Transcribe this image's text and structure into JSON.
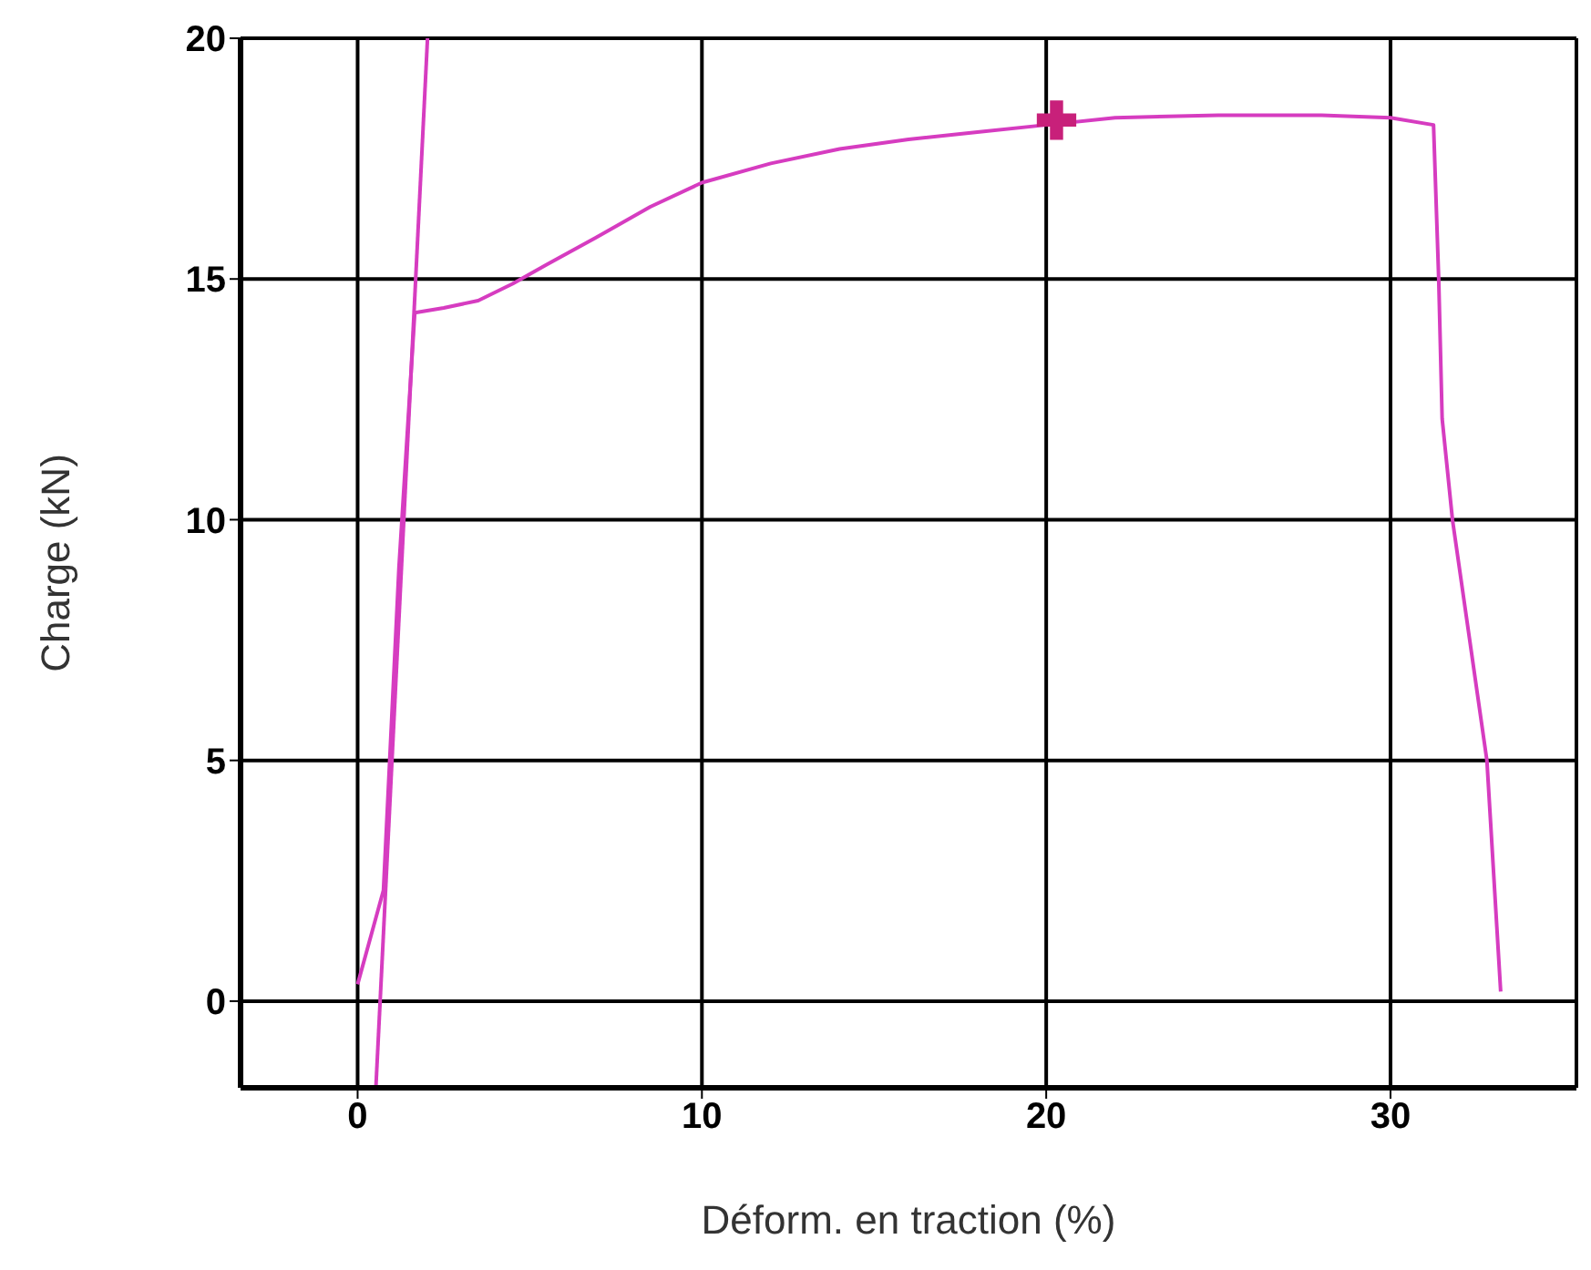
{
  "chart_data": {
    "type": "line",
    "xlabel": "Déform. en traction (%)",
    "ylabel": "Charge (kN)",
    "xlim": [
      -3.4,
      35.4
    ],
    "ylim": [
      -1.8,
      20
    ],
    "xticks": [
      0,
      10,
      20,
      30
    ],
    "yticks": [
      0,
      5,
      10,
      15,
      20
    ],
    "grid": true,
    "marker": "none",
    "line_style": "solid",
    "series": [
      {
        "color": "#d63cc0",
        "x": [
          0,
          0.75,
          1.2,
          1.66,
          2.5,
          3.5,
          4.5,
          5.5,
          6.9,
          8.5,
          10,
          12,
          14,
          16,
          18,
          20,
          22,
          25,
          28,
          30,
          31.25,
          31.4,
          31.5,
          31.8,
          32.3,
          32.8,
          33.2
        ],
        "values": [
          0.35,
          2.3,
          9,
          14.3,
          14.4,
          14.55,
          14.9,
          15.3,
          15.85,
          16.5,
          17.0,
          17.4,
          17.7,
          17.9,
          18.05,
          18.2,
          18.35,
          18.4,
          18.4,
          18.35,
          18.2,
          15,
          12.1,
          10,
          7.5,
          5,
          0.2
        ]
      },
      {
        "color": "#d63cc0",
        "x": [
          0.53,
          2.03
        ],
        "values": [
          -1.8,
          20
        ]
      },
      {
        "type": "scatter",
        "marker": "cross",
        "color": "#c8207a",
        "x": [
          20.3
        ],
        "values": [
          18.3
        ]
      }
    ]
  }
}
